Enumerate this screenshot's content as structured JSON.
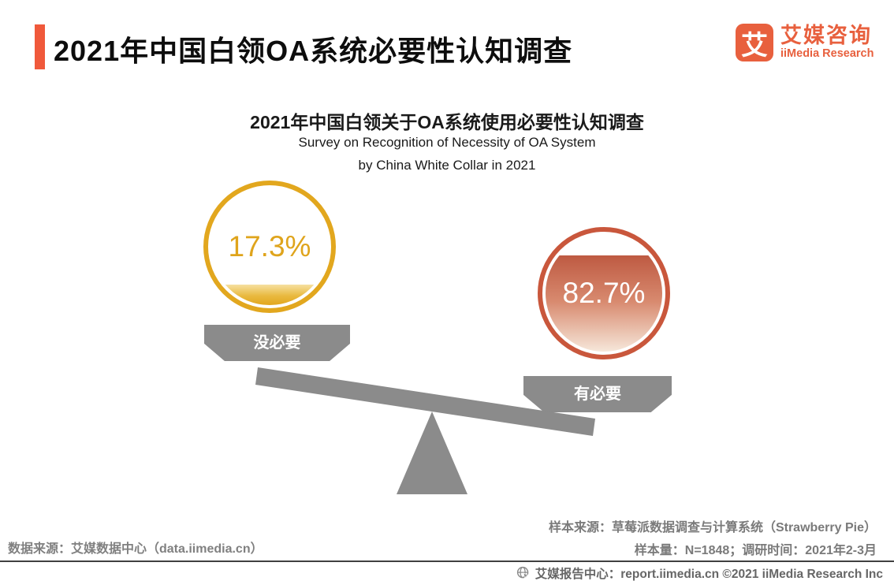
{
  "page": {
    "title": "2021年中国白领OA系统必要性认知调查"
  },
  "logo": {
    "glyph": "艾",
    "name_cn": "艾媒咨询",
    "name_en": "iiMedia Research"
  },
  "chart": {
    "title": "2021年中国白领关于OA系统使用必要性认知调查",
    "subtitle_line1": "Survey on Recognition of Necessity of OA System",
    "subtitle_line2": "by China White Collar in 2021"
  },
  "chart_data": {
    "type": "pie",
    "title": "2021年中国白领关于OA系统使用必要性认知调查",
    "subtitle": [
      "Survey on Recognition of Necessity of OA System",
      "by China White Collar in 2021"
    ],
    "categories": [
      "没必要",
      "有必要"
    ],
    "values": [
      17.3,
      82.7
    ],
    "unit": "%",
    "colors": [
      "#E2A71E",
      "#C9573C"
    ],
    "legend_position": "none",
    "visual_style": "balance-scale pictogram; each side is a circle gauge filled to its percentage; the heavier side (有必要, 82.7%) tips the gray seesaw beam down to the right"
  },
  "balance": {
    "left": {
      "value": "17.3%",
      "label": "没必要"
    },
    "right": {
      "value": "82.7%",
      "label": "有必要"
    }
  },
  "sources": {
    "data_source": "数据来源：艾媒数据中心（data.iimedia.cn）",
    "sample_source": "样本来源：草莓派数据调查与计算系统（Strawberry Pie）",
    "sample_info": "样本量：N=1848；调研时间：2021年2-3月"
  },
  "footer": {
    "text": "艾媒报告中心：report.iimedia.cn ©2021  iiMedia Research  Inc"
  },
  "theme": {
    "accent_orange": "#F0593B",
    "logo_orange": "#E8603E",
    "gold": "#E2A71E",
    "brick_red": "#C9573C",
    "gray_shape": "#8B8B8B"
  }
}
